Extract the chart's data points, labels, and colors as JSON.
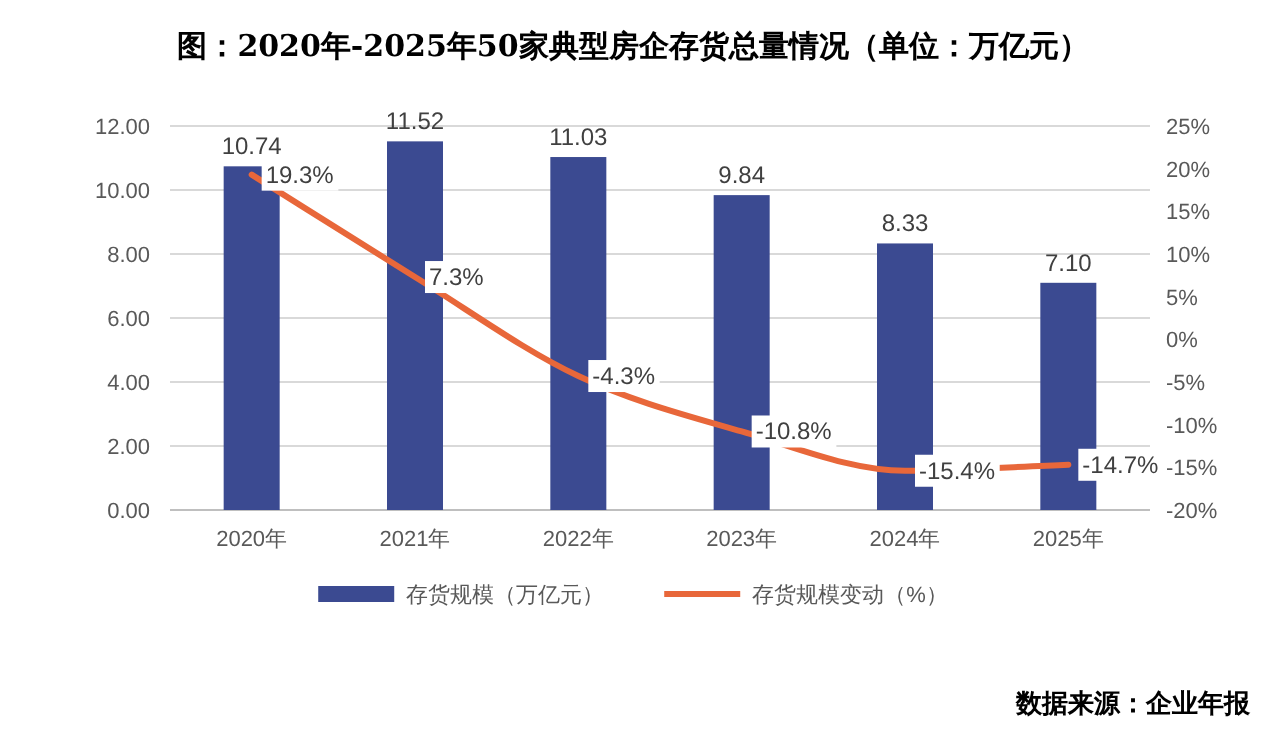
{
  "chart_data": {
    "type": "bar",
    "title": "图：2020年-2025年50家典型房企存货总量情况（单位：万亿元）",
    "categories": [
      "2020年",
      "2021年",
      "2022年",
      "2023年",
      "2024年",
      "2025年"
    ],
    "series": [
      {
        "name": "存货规模（万亿元）",
        "color": "#3b4a91",
        "values": [
          10.74,
          11.52,
          11.03,
          9.84,
          8.33,
          7.1
        ],
        "value_labels": [
          "10.74",
          "11.52",
          "11.03",
          "9.84",
          "8.33",
          "7.10"
        ]
      },
      {
        "name": "存货规模变动（%）",
        "type": "line",
        "axis": "y2",
        "color": "#e8673a",
        "values": [
          19.3,
          7.3,
          -4.3,
          -10.8,
          -15.4,
          -14.7
        ],
        "value_labels": [
          "19.3%",
          "7.3%",
          "-4.3%",
          "-10.8%",
          "-15.4%",
          "-14.7%"
        ]
      }
    ],
    "ylim": [
      0,
      12
    ],
    "yticks": [
      {
        "value": 0,
        "label": "0.00"
      },
      {
        "value": 2,
        "label": "2.00"
      },
      {
        "value": 4,
        "label": "4.00"
      },
      {
        "value": 6,
        "label": "6.00"
      },
      {
        "value": 8,
        "label": "8.00"
      },
      {
        "value": 10,
        "label": "10.00"
      },
      {
        "value": 12,
        "label": "12.00"
      }
    ],
    "y2lim": [
      -20,
      25
    ],
    "y2ticks": [
      {
        "value": -20,
        "label": "-20%"
      },
      {
        "value": -15,
        "label": "-15%"
      },
      {
        "value": -10,
        "label": "-10%"
      },
      {
        "value": -5,
        "label": "-5%"
      },
      {
        "value": 0,
        "label": "0%"
      },
      {
        "value": 5,
        "label": "5%"
      },
      {
        "value": 10,
        "label": "10%"
      },
      {
        "value": 15,
        "label": "15%"
      },
      {
        "value": 20,
        "label": "20%"
      },
      {
        "value": 25,
        "label": "25%"
      }
    ],
    "grid": "y",
    "legend": "bottom",
    "marker": "none",
    "annotations": [
      "数据来源：企业年报"
    ]
  }
}
